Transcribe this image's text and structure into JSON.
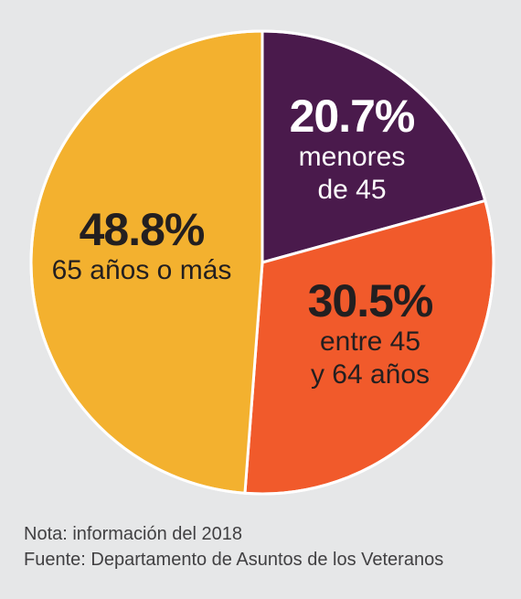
{
  "chart_data": {
    "type": "pie",
    "start_angle_deg": 0,
    "direction": "clockwise",
    "slices": [
      {
        "percent": 20.7,
        "value_label": "20.7%",
        "desc_line1": "menores",
        "desc_line2": "de 45",
        "color": "#4a1a4c",
        "text_color": "#ffffff"
      },
      {
        "percent": 30.5,
        "value_label": "30.5%",
        "desc_line1": "entre 45",
        "desc_line2": "y 64 años",
        "color": "#f15a2b",
        "text_color": "#231f20"
      },
      {
        "percent": 48.8,
        "value_label": "48.8%",
        "desc_line1": "65 años o más",
        "desc_line2": "",
        "color": "#f3b12f",
        "text_color": "#231f20"
      }
    ],
    "border_color": "#ffffff"
  },
  "notes": {
    "note": "Nota: información del 2018",
    "source": "Fuente: Departamento de Asuntos de los Veteranos"
  }
}
